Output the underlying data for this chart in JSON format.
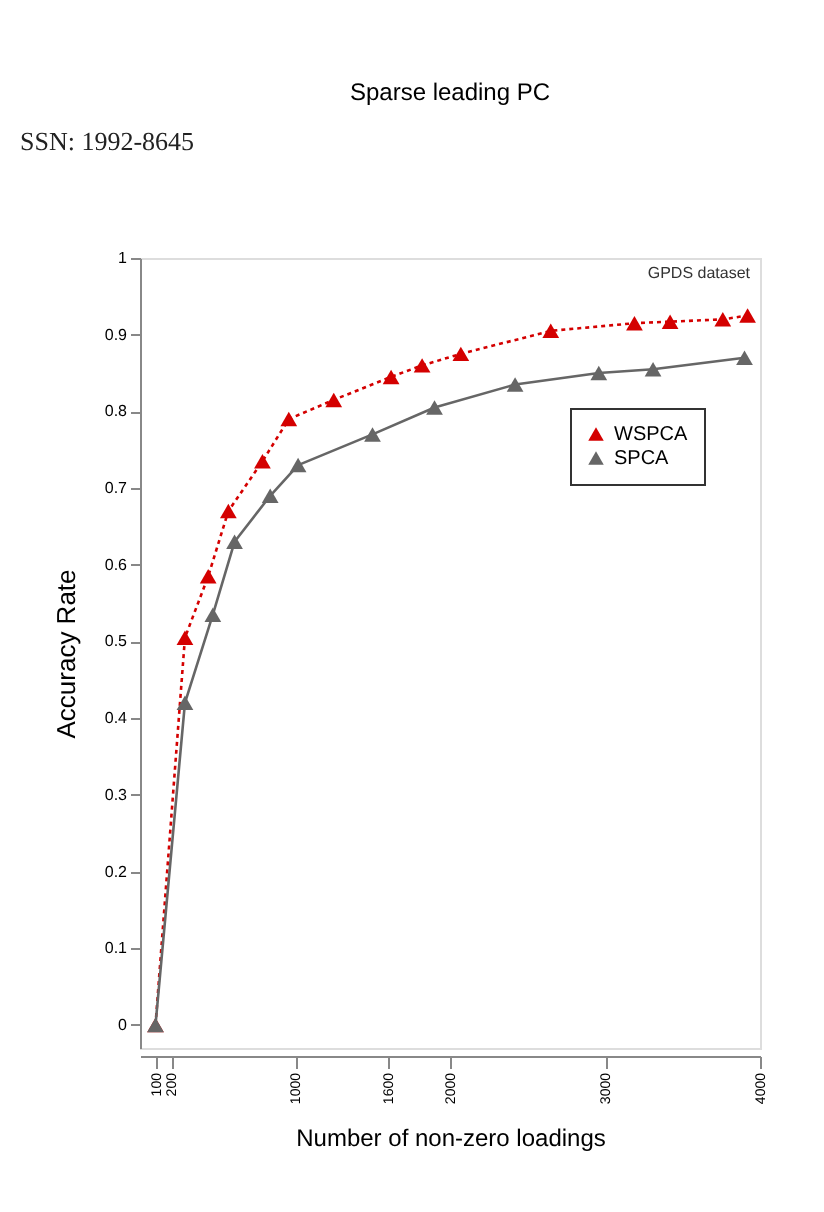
{
  "chart_data": {
    "type": "line",
    "title": "Sparse leading PC",
    "xlabel": "Number of non-zero loadings",
    "ylabel": "Accuracy Rate",
    "annotations": [
      "SSN: 1992-8645",
      "GPDS dataset"
    ],
    "xlim": [
      0,
      4000
    ],
    "xticks": [
      100,
      200,
      1000,
      1600,
      2000,
      3000,
      4000
    ],
    "ylim": [
      -0.03,
      1
    ],
    "yticks": [
      0,
      0.1,
      0.2,
      0.3,
      0.4,
      0.5,
      0.6,
      0.7,
      0.8,
      0.9,
      1
    ],
    "grid": false,
    "legend": "top right",
    "marker": "triangle",
    "series": [
      {
        "name": "WSPCA",
        "color": "#d40000",
        "line_style": "dotted",
        "x": [
          100,
          290,
          440,
          570,
          790,
          960,
          1250,
          1620,
          1820,
          2070,
          2650,
          3190,
          3420,
          3760,
          3920
        ],
        "values": [
          0,
          0.505,
          0.585,
          0.67,
          0.735,
          0.79,
          0.815,
          0.845,
          0.86,
          0.875,
          0.905,
          0.915,
          0.917,
          0.92,
          0.925
        ]
      },
      {
        "name": "SPCA",
        "color": "#666666",
        "line_style": "solid",
        "x": [
          100,
          290,
          470,
          610,
          840,
          1020,
          1500,
          1900,
          2420,
          2960,
          3310,
          3900
        ],
        "values": [
          0,
          0.42,
          0.535,
          0.63,
          0.69,
          0.73,
          0.77,
          0.805,
          0.835,
          0.85,
          0.855,
          0.87
        ]
      }
    ]
  }
}
